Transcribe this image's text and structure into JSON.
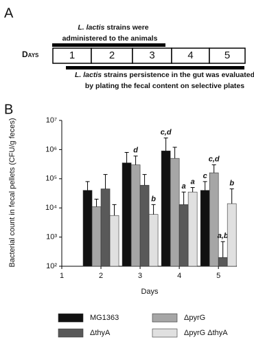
{
  "panel_a": {
    "label": "A",
    "days_label": "Days",
    "days": [
      "1",
      "2",
      "3",
      "4",
      "5"
    ],
    "top_note": {
      "species": "L. lactis",
      "line1": "strains were",
      "line2": "administered to the animals"
    },
    "bottom_note": {
      "species": "L. lactis",
      "line1": "strains persistence in the gut was evaluated",
      "line2": "by plating the fecal content on selective plates"
    }
  },
  "panel_b": {
    "label": "B"
  },
  "chart_data": {
    "type": "bar",
    "log_scale": true,
    "y_label": "Bacterial count in fecal pellets (CFU/g feces)",
    "x_label": "Days",
    "x": [
      2,
      3,
      4,
      5
    ],
    "xlim": [
      1,
      5.47
    ],
    "xticks": [
      1,
      2,
      3,
      4,
      5
    ],
    "ylim": [
      100,
      10000000
    ],
    "yticks": [
      {
        "value": 100,
        "label": "10²"
      },
      {
        "value": 1000,
        "label": "10³"
      },
      {
        "value": 10000,
        "label": "10⁴"
      },
      {
        "value": 100000,
        "label": "10⁵"
      },
      {
        "value": 1000000,
        "label": "10⁶"
      },
      {
        "value": 10000000,
        "label": "10⁷"
      }
    ],
    "series": [
      {
        "name": "MG1363",
        "color": "#111111",
        "values": [
          40000,
          350000,
          900000,
          40000
        ],
        "errors": [
          40000,
          450000,
          1600000,
          40000
        ],
        "significance": [
          null,
          null,
          "c,d",
          "c"
        ]
      },
      {
        "name": "ΔpyrG",
        "color": "#a6a6a6",
        "values": [
          11000,
          300000,
          500000,
          160000
        ],
        "errors": [
          9000,
          300000,
          700000,
          140000
        ],
        "significance": [
          null,
          "d",
          null,
          "c,d"
        ]
      },
      {
        "name": "ΔthyA",
        "color": "#595959",
        "values": [
          45000,
          60000,
          13000,
          200
        ],
        "errors": [
          95000,
          80000,
          22000,
          500
        ],
        "significance": [
          null,
          null,
          "a",
          "a,b"
        ]
      },
      {
        "name": "ΔpyrG ΔthyA",
        "color": "#e0e0e0",
        "values": [
          5500,
          6000,
          35000,
          14000
        ],
        "errors": [
          7500,
          7000,
          15000,
          31000
        ],
        "significance": [
          null,
          "b",
          "a",
          "b"
        ]
      }
    ]
  }
}
